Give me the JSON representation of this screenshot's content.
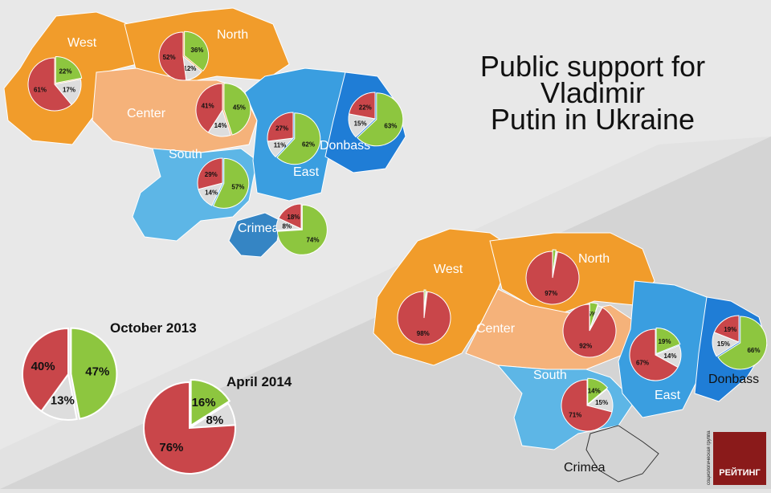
{
  "title_lines": [
    "Public support for",
    "Vladimir",
    "Putin in Ukraine"
  ],
  "legend": {
    "oct_label": "October 2013",
    "apr_label": "April 2014"
  },
  "logo": {
    "text": "РЕЙТИНГ",
    "side_text": "социологическая группа",
    "color": "#8a1a1a"
  },
  "colors": {
    "support": "#8dc63f",
    "oppose": "#c9464a",
    "undecided": "#dddddd",
    "west": "#f19c2b",
    "north": "#f19c2b",
    "center": "#f5b27a",
    "south": "#5db6e6",
    "east": "#3a9ee0",
    "donbass": "#1f7dd6",
    "crimea": "#3585c4"
  },
  "chart_data": [
    {
      "type": "pie",
      "title": "October 2013",
      "map_labels": {
        "west": "West",
        "north": "North",
        "center": "Center",
        "south": "South",
        "east": "East",
        "donbass": "Donbass",
        "crimea": "Crimea"
      },
      "slices_order": [
        "support",
        "undecided",
        "oppose"
      ],
      "regions": [
        {
          "name": "West",
          "support": 22,
          "undecided": 17,
          "oppose": 61
        },
        {
          "name": "North",
          "support": 36,
          "undecided": 12,
          "oppose": 52
        },
        {
          "name": "Center",
          "support": 45,
          "undecided": 14,
          "oppose": 41
        },
        {
          "name": "South",
          "support": 57,
          "undecided": 14,
          "oppose": 29
        },
        {
          "name": "East",
          "support": 62,
          "undecided": 11,
          "oppose": 27
        },
        {
          "name": "Donbass",
          "support": 63,
          "undecided": 15,
          "oppose": 22
        },
        {
          "name": "Crimea",
          "support": 74,
          "undecided": 8,
          "oppose": 18
        }
      ],
      "national": {
        "support": 47,
        "undecided": 13,
        "oppose": 40
      }
    },
    {
      "type": "pie",
      "title": "April 2014",
      "map_labels": {
        "west": "West",
        "north": "North",
        "center": "Center",
        "south": "South",
        "east": "East",
        "donbass": "Donbass",
        "crimea": "Crimea"
      },
      "slices_order": [
        "support",
        "undecided",
        "oppose"
      ],
      "regions": [
        {
          "name": "West",
          "support": 1,
          "undecided": 1,
          "oppose": 98
        },
        {
          "name": "North",
          "support": 2,
          "undecided": 1,
          "oppose": 97
        },
        {
          "name": "Center",
          "support": 5,
          "undecided": 3,
          "oppose": 92
        },
        {
          "name": "South",
          "support": 14,
          "undecided": 15,
          "oppose": 71
        },
        {
          "name": "East",
          "support": 19,
          "undecided": 14,
          "oppose": 67
        },
        {
          "name": "Donbass",
          "support": 66,
          "undecided": 15,
          "oppose": 19
        }
      ],
      "national": {
        "support": 16,
        "undecided": 8,
        "oppose": 76
      }
    }
  ]
}
